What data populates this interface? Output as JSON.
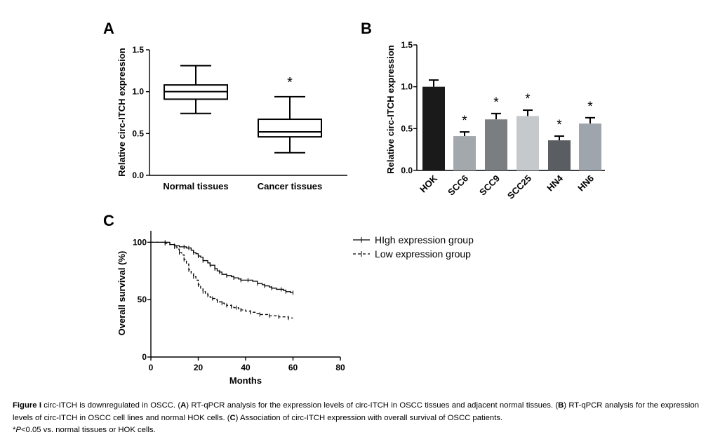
{
  "chart_data": [
    {
      "panel": "A",
      "type": "box",
      "ylabel": "Relative circ-ITCH expression",
      "ylim": [
        0,
        1.5
      ],
      "yticks": [
        "0.0",
        "0.5",
        "1.0",
        "1.5"
      ],
      "categories": [
        "Normal tissues",
        "Cancer tissues"
      ],
      "boxes": [
        {
          "min": 0.74,
          "q1": 0.91,
          "median": 1.0,
          "q3": 1.08,
          "max": 1.31,
          "annotation": ""
        },
        {
          "min": 0.27,
          "q1": 0.46,
          "median": 0.52,
          "q3": 0.67,
          "max": 0.94,
          "annotation": "*"
        }
      ]
    },
    {
      "panel": "B",
      "type": "bar",
      "ylabel": "Relative circ-ITCH expression",
      "ylim": [
        0,
        1.5
      ],
      "yticks": [
        "0.0",
        "0.5",
        "1.0",
        "1.5"
      ],
      "categories": [
        "HOK",
        "SCC6",
        "SCC9",
        "SCC25",
        "HN4",
        "HN6"
      ],
      "values": [
        1.0,
        0.41,
        0.61,
        0.65,
        0.36,
        0.56
      ],
      "errors": [
        0.08,
        0.05,
        0.07,
        0.07,
        0.05,
        0.07
      ],
      "colors": [
        "#1a1a1a",
        "#a3a8ad",
        "#7b7e81",
        "#c5c9cc",
        "#5a5d61",
        "#9ea5ac"
      ],
      "annotations": [
        "",
        "*",
        "*",
        "*",
        "*",
        "*"
      ]
    },
    {
      "panel": "C",
      "type": "line",
      "xlabel": "Months",
      "ylabel": "Overall survival (%)",
      "xlim": [
        0,
        80
      ],
      "ylim": [
        0,
        110
      ],
      "xticks": [
        "0",
        "20",
        "40",
        "60",
        "80"
      ],
      "yticks": [
        "0",
        "50",
        "100"
      ],
      "series": [
        {
          "name": "HIgh expression group",
          "dash": "solid",
          "x": [
            0,
            6,
            8,
            10,
            12,
            14,
            15,
            16,
            17,
            18,
            19,
            20,
            21,
            22,
            24,
            25,
            26,
            27,
            28,
            29,
            30,
            32,
            34,
            35,
            37,
            38,
            40,
            41,
            43,
            45,
            47,
            48,
            50,
            51,
            53,
            55,
            56,
            57,
            59,
            60
          ],
          "y": [
            100,
            100,
            98,
            97,
            96,
            96,
            95,
            95,
            93,
            91,
            90,
            88,
            87,
            84,
            82,
            80,
            80,
            77,
            75,
            74,
            72,
            71,
            70,
            69,
            68,
            67,
            67,
            67,
            66,
            64,
            63,
            62,
            61,
            60,
            59,
            59,
            58,
            57,
            56,
            56
          ]
        },
        {
          "name": "Low expression group",
          "dash": "dashed",
          "x": [
            0,
            6,
            8,
            10,
            11,
            12,
            13,
            14,
            15,
            16,
            17,
            18,
            19,
            20,
            21,
            22,
            23,
            24,
            25,
            26,
            27,
            28,
            29,
            30,
            31,
            32,
            33,
            34,
            35,
            36,
            37,
            38,
            40,
            42,
            44,
            46,
            48,
            50,
            52,
            54,
            56,
            58,
            60
          ],
          "y": [
            100,
            99,
            98,
            96,
            94,
            91,
            89,
            85,
            81,
            76,
            73,
            70,
            67,
            63,
            60,
            57,
            55,
            54,
            52,
            51,
            50,
            49,
            48,
            47,
            46,
            45,
            45,
            44,
            43,
            43,
            42,
            41,
            40,
            39,
            38,
            37,
            37,
            36,
            36,
            35,
            35,
            34,
            34
          ]
        }
      ],
      "legend": "top-right"
    }
  ],
  "caption": {
    "figure_label": "Figure I",
    "lead": "circ-ITCH is downregulated in OSCC. (",
    "a_label": "A",
    "a_text": ") RT-qPCR analysis for the expression levels of circ-ITCH in OSCC tissues and adjacent normal tissues. (",
    "b_label": "B",
    "b_text": ") RT-qPCR analysis for the expression levels of circ-ITCH in OSCC cell lines and normal HOK cells. (",
    "c_label": "C",
    "c_text": ") Association of circ-ITCH expression with overall survival of OSCC patients.",
    "note_star": "*",
    "note_p": "P",
    "note_rest": "<0.05 vs. normal tissues or HOK cells."
  }
}
